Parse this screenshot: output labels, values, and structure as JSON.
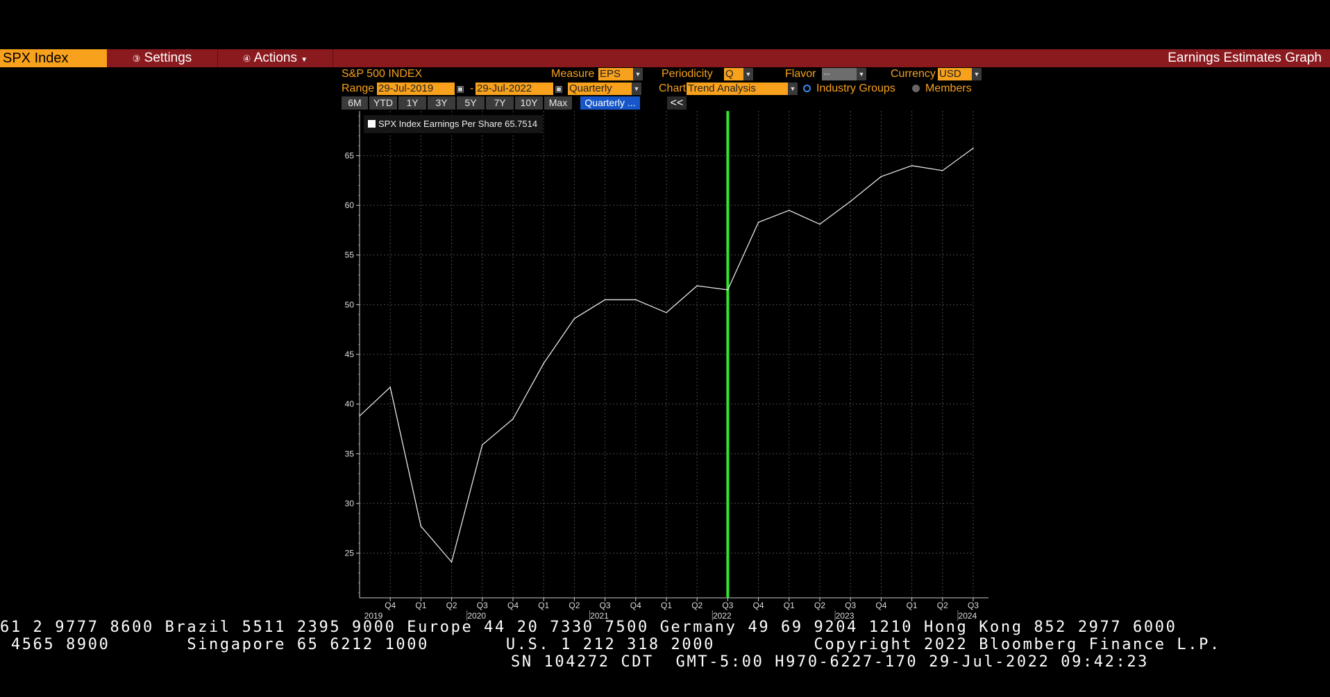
{
  "toolbar": {
    "ticker": "SPX Index",
    "settings_label": "Settings",
    "actions_label": "Actions",
    "title": "Earnings Estimates Graph"
  },
  "controls": {
    "security_name": "S&P 500 INDEX",
    "measure_label": "Measure",
    "measure_value": "EPS",
    "periodicity_label": "Periodicity",
    "periodicity_value": "Q",
    "flavor_label": "Flavor",
    "flavor_value": "--",
    "currency_label": "Currency",
    "currency_value": "USD",
    "range_label": "Range",
    "range_start": "29-Jul-2019",
    "range_dash": "-",
    "range_end": "29-Jul-2022",
    "frequency_value": "Quarterly",
    "chart_label": "Chart",
    "chart_value": "Trend Analysis",
    "industry_groups_label": "Industry Groups",
    "members_label": "Members",
    "range_buttons": [
      "6M",
      "YTD",
      "1Y",
      "3Y",
      "5Y",
      "7Y",
      "10Y",
      "Max"
    ],
    "quarterly_button": "Quarterly ...",
    "collapse_label": "<<"
  },
  "colors": {
    "accent_orange": "#f8a11c",
    "toolbar_red": "#8b1a1f",
    "active_blue": "#1656c9",
    "current_marker_green": "#2ee82e",
    "line_white": "#e6e6e6"
  },
  "chart_data": {
    "type": "line",
    "legend": "SPX Index Earnings Per Share 65.7514",
    "quarters": [
      "Q3",
      "Q4",
      "Q1",
      "Q2",
      "Q3",
      "Q4",
      "Q1",
      "Q2",
      "Q3",
      "Q4",
      "Q1",
      "Q2",
      "Q3",
      "Q4",
      "Q1",
      "Q2",
      "Q3",
      "Q4",
      "Q1",
      "Q2",
      "Q3"
    ],
    "quarter_labels": [
      "Q4",
      "Q1",
      "Q2",
      "Q3",
      "Q4",
      "Q1",
      "Q2",
      "Q3",
      "Q4",
      "Q1",
      "Q2",
      "Q3",
      "Q4",
      "Q1",
      "Q2",
      "Q3",
      "Q4",
      "Q1",
      "Q2",
      "Q3"
    ],
    "years": [
      {
        "label": "2019",
        "after_quarter_index": 0
      },
      {
        "label": "2020",
        "after_quarter_index": 3
      },
      {
        "label": "2021",
        "after_quarter_index": 7
      },
      {
        "label": "2022",
        "after_quarter_index": 11
      },
      {
        "label": "2023",
        "after_quarter_index": 15
      },
      {
        "label": "2024",
        "after_quarter_index": 19
      }
    ],
    "series": [
      {
        "values": [
          38.8,
          41.7,
          27.7,
          24.1,
          35.9,
          38.5,
          44.1,
          48.6,
          50.5,
          50.5,
          49.2,
          51.9,
          51.5,
          58.3,
          59.5,
          58.1,
          60.4,
          62.9,
          64.0,
          63.5,
          65.75
        ]
      }
    ],
    "current_period_index": 12,
    "ylim": [
      20.5,
      69.5
    ],
    "yticks": [
      25,
      30,
      35,
      40,
      45,
      50,
      55,
      60,
      65
    ],
    "grid": true,
    "legend_position": "top-left"
  },
  "footer": {
    "line1": "61 2 9777 8600 Brazil 5511 2395 9000 Europe 44 20 7330 7500 Germany 49 69 9204 1210 Hong Kong 852 2977 6000",
    "line2": " 4565 8900       Singapore 65 6212 1000       U.S. 1 212 318 2000         Copyright 2022 Bloomberg Finance L.P.",
    "line3": "SN 104272 CDT  GMT-5:00 H970-6227-170 29-Jul-2022 09:42:23"
  }
}
